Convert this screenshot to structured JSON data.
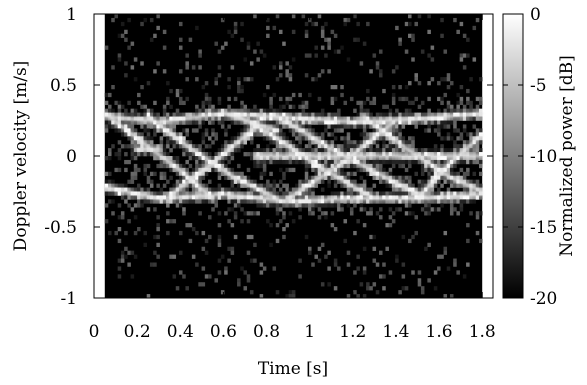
{
  "chart_data": {
    "type": "heatmap",
    "title": "",
    "xlabel": "Time [s]",
    "ylabel": "Doppler velocity [m/s]",
    "xlim": [
      0,
      1.85
    ],
    "ylim": [
      -1,
      1
    ],
    "data_xrange": [
      0.05,
      1.8
    ],
    "x_ticks": [
      0,
      0.2,
      0.4,
      0.6,
      0.8,
      1,
      1.2,
      1.4,
      1.6,
      1.8
    ],
    "x_tick_labels": [
      "0",
      "0.2",
      "0.4",
      "0.6",
      "0.8",
      "1",
      "1.2",
      "1.4",
      "1.6",
      "1.8"
    ],
    "y_ticks": [
      1,
      0.5,
      0,
      -0.5,
      -1
    ],
    "y_tick_labels": [
      "1",
      "0.5",
      "0",
      "-0.5",
      "-1"
    ],
    "colorbar": {
      "label": "Normalized power [dB]",
      "range": [
        -20,
        0
      ],
      "ticks": [
        0,
        -5,
        -10,
        -15,
        -20
      ],
      "tick_labels": [
        "0",
        "-5",
        "-10",
        "-15",
        "-20"
      ],
      "colormap": [
        "#000000",
        "#ffffff"
      ]
    },
    "background_level_db": -20,
    "grid": false,
    "legend": "none",
    "traces": [
      {
        "name": "upper-band",
        "x": [
          0.05,
          0.3,
          0.6,
          0.9,
          1.2,
          1.5,
          1.8
        ],
        "y": [
          0.28,
          0.24,
          0.3,
          0.27,
          0.24,
          0.26,
          0.3
        ]
      },
      {
        "name": "lower-band",
        "x": [
          0.05,
          0.3,
          0.6,
          0.9,
          1.2,
          1.5,
          1.8
        ],
        "y": [
          -0.22,
          -0.3,
          -0.27,
          -0.32,
          -0.3,
          -0.3,
          -0.27
        ]
      },
      {
        "name": "center-line",
        "x": [
          0.75,
          1.0,
          1.3,
          1.6,
          1.8
        ],
        "y": [
          0.0,
          0.0,
          0.0,
          0.0,
          0.0
        ]
      },
      {
        "name": "diagonal-1",
        "x": [
          0.05,
          0.22,
          0.4,
          0.55
        ],
        "y": [
          0.3,
          0.1,
          -0.1,
          -0.3
        ]
      },
      {
        "name": "diagonal-2",
        "x": [
          0.25,
          0.45,
          0.65,
          0.85
        ],
        "y": [
          0.28,
          0.05,
          -0.15,
          -0.3
        ]
      },
      {
        "name": "diagonal-3",
        "x": [
          0.65,
          0.85,
          1.05,
          1.3
        ],
        "y": [
          0.3,
          0.12,
          -0.08,
          -0.3
        ]
      },
      {
        "name": "diagonal-4",
        "x": [
          0.85,
          1.1,
          1.35,
          1.55
        ],
        "y": [
          0.28,
          0.05,
          -0.15,
          -0.3
        ]
      },
      {
        "name": "diagonal-5",
        "x": [
          1.25,
          1.45,
          1.65,
          1.8
        ],
        "y": [
          0.28,
          0.05,
          -0.15,
          -0.25
        ]
      },
      {
        "name": "crossing-1",
        "x": [
          0.35,
          0.55,
          0.75
        ],
        "y": [
          -0.28,
          -0.05,
          0.2
        ]
      },
      {
        "name": "crossing-2",
        "x": [
          0.9,
          1.15,
          1.4
        ],
        "y": [
          -0.3,
          -0.05,
          0.25
        ]
      },
      {
        "name": "crossing-3",
        "x": [
          1.5,
          1.65,
          1.8
        ],
        "y": [
          -0.3,
          -0.05,
          0.15
        ]
      },
      {
        "name": "hot-spot-1",
        "x": [
          0.2,
          0.3
        ],
        "y": [
          0.05,
          0.05
        ]
      },
      {
        "name": "hot-spot-2",
        "x": [
          0.6,
          0.85
        ],
        "y": [
          0.3,
          0.18
        ]
      }
    ]
  }
}
